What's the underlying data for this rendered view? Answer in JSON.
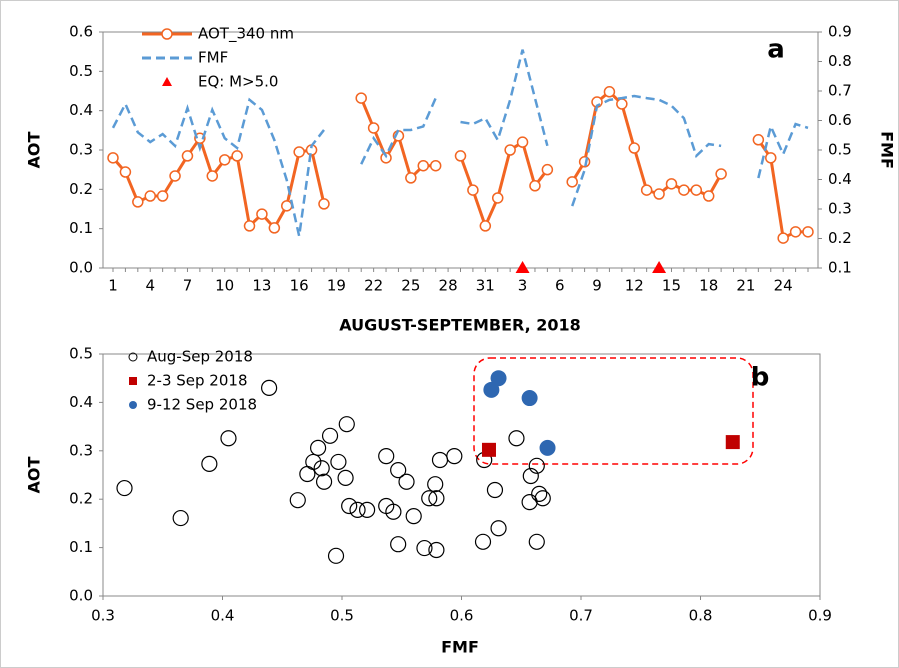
{
  "chart_data": [
    {
      "type": "line",
      "annotation": "a",
      "xlabel": "AUGUST-SEPTEMBER, 2018",
      "ylabel": "AOT",
      "y2label": "FMF",
      "categories": [
        "1",
        null,
        null,
        "4",
        null,
        null,
        "7",
        null,
        null,
        "10",
        null,
        null,
        "13",
        null,
        null,
        "16",
        null,
        null,
        "19",
        null,
        null,
        "22",
        null,
        null,
        "25",
        null,
        null,
        "28",
        null,
        null,
        "31",
        null,
        null,
        "3",
        null,
        null,
        "6",
        null,
        null,
        "9",
        null,
        null,
        "12",
        null,
        null,
        "15",
        null,
        null,
        "18",
        null,
        null,
        "21",
        null,
        null,
        "24",
        null,
        null
      ],
      "ylim": [
        0,
        0.6
      ],
      "yticks": [
        {
          "value": 0,
          "label": "0.0"
        },
        0.1,
        0.2,
        0.3,
        0.4,
        0.5,
        0.6
      ],
      "y2lim": [
        0.1,
        0.9
      ],
      "y2ticks": [
        0.1,
        0.2,
        0.3,
        0.4,
        0.5,
        0.6,
        0.7,
        0.8,
        0.9
      ],
      "legend": "upper left",
      "series": [
        {
          "name": "AOT_340 nm",
          "color": "#f26522",
          "marker": "circle",
          "axis": "y",
          "values": [
            0.28,
            0.244,
            0.168,
            0.183,
            0.183,
            0.234,
            0.285,
            0.33,
            0.234,
            0.275,
            0.285,
            0.107,
            0.137,
            0.102,
            0.158,
            0.295,
            0.3,
            0.163,
            null,
            null,
            0.432,
            0.356,
            0.28,
            0.336,
            0.229,
            0.26,
            0.26,
            null,
            0.285,
            0.198,
            0.107,
            0.178,
            0.3,
            0.32,
            0.209,
            0.25,
            null,
            0.219,
            0.27,
            0.422,
            0.448,
            0.417,
            0.305,
            0.198,
            0.188,
            0.214,
            0.198,
            0.198,
            0.183,
            0.239,
            null,
            null,
            0.326,
            0.28,
            0.076,
            0.092,
            0.092
          ]
        },
        {
          "name": "FMF",
          "color": "#5b9bd5",
          "dash": true,
          "axis": "y2",
          "values": [
            0.575,
            0.656,
            0.56,
            0.527,
            0.554,
            0.514,
            0.642,
            0.507,
            0.636,
            0.54,
            0.507,
            0.67,
            0.636,
            0.534,
            0.398,
            0.208,
            0.514,
            0.568,
            null,
            null,
            0.452,
            0.54,
            0.48,
            0.568,
            0.568,
            0.58,
            0.676,
            null,
            0.595,
            0.588,
            0.608,
            0.534,
            0.67,
            0.84,
            0.676,
            0.514,
            null,
            0.31,
            0.432,
            0.65,
            0.67,
            0.676,
            0.683,
            0.676,
            0.67,
            0.65,
            0.608,
            0.48,
            0.52,
            0.514,
            null,
            null,
            0.405,
            0.58,
            0.486,
            0.588,
            0.575
          ]
        },
        {
          "name": "EQ: M>5.0",
          "color": "#ff0000",
          "marker": "triangle",
          "axis": "y",
          "values": [
            null,
            null,
            null,
            null,
            null,
            null,
            null,
            null,
            null,
            null,
            null,
            null,
            null,
            null,
            null,
            null,
            null,
            null,
            null,
            null,
            null,
            null,
            null,
            null,
            null,
            null,
            null,
            null,
            null,
            null,
            null,
            null,
            null,
            0,
            null,
            null,
            null,
            null,
            null,
            null,
            null,
            null,
            null,
            null,
            0,
            null,
            null,
            null,
            null,
            null,
            null,
            null,
            null,
            null,
            null,
            null,
            null
          ]
        }
      ]
    },
    {
      "type": "scatter",
      "annotation": "b",
      "xlabel": "FMF",
      "ylabel": "AOT",
      "xlim": [
        0.3,
        0.9
      ],
      "xticks": [
        0.3,
        0.4,
        0.5,
        0.6,
        0.7,
        0.8,
        0.9
      ],
      "ylim": [
        0,
        0.5
      ],
      "yticks": [
        {
          "value": 0,
          "label": "0.0"
        },
        0.1,
        0.2,
        0.3,
        0.4,
        0.5
      ],
      "legend": "upper left",
      "series": [
        {
          "name": "Aug-Sep 2018",
          "color": "#000000",
          "marker": "open-circle",
          "x": [
            0.318,
            0.365,
            0.389,
            0.405,
            0.439,
            0.463,
            0.471,
            0.476,
            0.48,
            0.485,
            0.483,
            0.49,
            0.495,
            0.497,
            0.503,
            0.504,
            0.506,
            0.513,
            0.521,
            0.537,
            0.537,
            0.543,
            0.547,
            0.547,
            0.554,
            0.56,
            0.569,
            0.573,
            0.578,
            0.579,
            0.579,
            0.582,
            0.594,
            0.618,
            0.619,
            0.628,
            0.631,
            0.646,
            0.657,
            0.658,
            0.663,
            0.663,
            0.665,
            0.668
          ],
          "values": [
            0.223,
            0.161,
            0.273,
            0.326,
            0.43,
            0.198,
            0.252,
            0.277,
            0.306,
            0.236,
            0.264,
            0.331,
            0.083,
            0.277,
            0.244,
            0.355,
            0.186,
            0.178,
            0.178,
            0.289,
            0.186,
            0.174,
            0.26,
            0.107,
            0.236,
            0.165,
            0.099,
            0.202,
            0.231,
            0.202,
            0.095,
            0.281,
            0.289,
            0.112,
            0.281,
            0.219,
            0.14,
            0.326,
            0.194,
            0.248,
            0.269,
            0.112,
            0.211,
            0.202
          ]
        },
        {
          "name": "2-3 Sep 2018",
          "color": "#c00000",
          "marker": "square",
          "x": [
            0.623,
            0.827
          ],
          "values": [
            0.302,
            0.318
          ]
        },
        {
          "name": "9-12 Sep 2018",
          "color": "#2e67b1",
          "marker": "circle",
          "x": [
            0.625,
            0.631,
            0.657,
            0.672
          ],
          "values": [
            0.426,
            0.45,
            0.409,
            0.306
          ]
        }
      ]
    }
  ]
}
